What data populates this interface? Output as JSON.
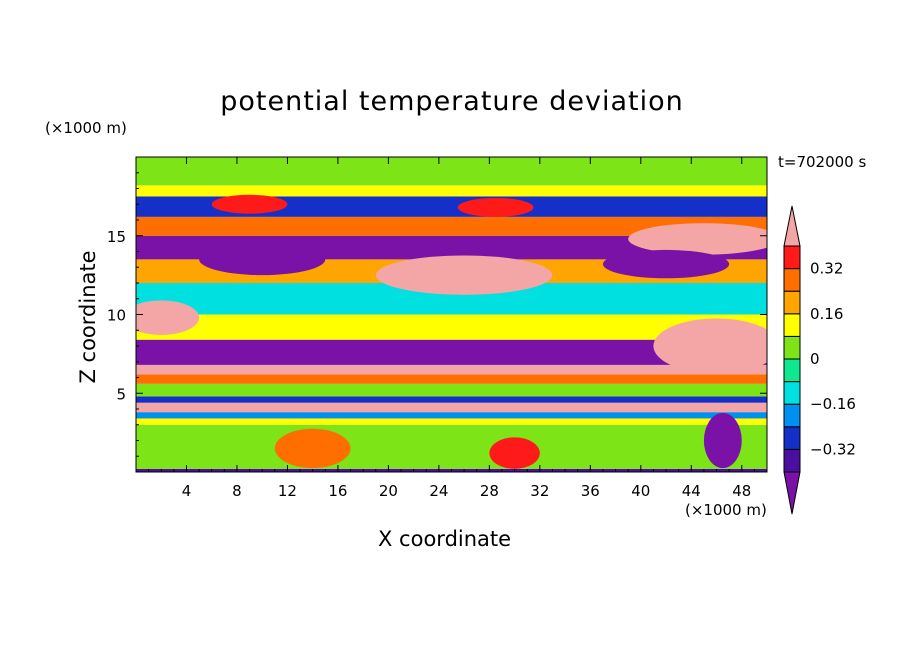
{
  "chart_data": {
    "type": "heatmap",
    "title": "potential temperature deviation",
    "xlabel": "X coordinate",
    "ylabel": "Z coordinate",
    "x_unit_label": "(×1000 m)",
    "y_unit_label": "(×1000 m)",
    "time_label": "t=702000 s",
    "xlim": [
      0,
      50
    ],
    "ylim": [
      0,
      20
    ],
    "x_ticks": [
      4,
      8,
      12,
      16,
      20,
      24,
      28,
      32,
      36,
      40,
      44,
      48
    ],
    "x_tick_labels": [
      "4",
      "8",
      "12",
      "16",
      "20",
      "24",
      "28",
      "32",
      "36",
      "40",
      "44",
      "48"
    ],
    "y_ticks": [
      5,
      10,
      15
    ],
    "y_tick_labels": [
      "5",
      "10",
      "15"
    ],
    "colorbar": {
      "levels": [
        -0.4,
        -0.32,
        -0.24,
        -0.16,
        -0.08,
        0,
        0.08,
        0.16,
        0.24,
        0.32,
        0.4
      ],
      "tick_values": [
        -0.32,
        -0.16,
        0,
        0.16,
        0.32
      ],
      "tick_labels": [
        "−0.32",
        "−0.16",
        "0",
        "0.16",
        "0.32"
      ],
      "colors": [
        "#7b12a8",
        "#4b0fa0",
        "#1530c8",
        "#0090f0",
        "#00e0e0",
        "#10e890",
        "#7de418",
        "#ffff00",
        "#ffa500",
        "#ff6e00",
        "#ff1a1a",
        "#f4a6a6"
      ],
      "extend": "both"
    },
    "bands": [
      {
        "z": [
          0,
          0.2
        ],
        "value": -0.36
      },
      {
        "z": [
          0.2,
          3.0
        ],
        "value": 0.0
      },
      {
        "z": [
          3.0,
          3.4
        ],
        "value": 0.08
      },
      {
        "z": [
          3.4,
          3.8
        ],
        "value": -0.2
      },
      {
        "z": [
          3.8,
          4.4
        ],
        "value": 0.45
      },
      {
        "z": [
          4.4,
          4.8
        ],
        "value": -0.3
      },
      {
        "z": [
          4.8,
          5.6
        ],
        "value": 0.04
      },
      {
        "z": [
          5.6,
          6.2
        ],
        "value": 0.3
      },
      {
        "z": [
          6.2,
          6.8
        ],
        "value": 0.45
      },
      {
        "z": [
          6.8,
          8.4
        ],
        "value": -0.45
      },
      {
        "z": [
          8.4,
          10.0
        ],
        "value": 0.12
      },
      {
        "z": [
          10.0,
          12.0
        ],
        "value": -0.1
      },
      {
        "z": [
          12.0,
          13.5
        ],
        "value": 0.2
      },
      {
        "z": [
          13.5,
          15.0
        ],
        "value": -0.42
      },
      {
        "z": [
          15.0,
          16.2
        ],
        "value": 0.3
      },
      {
        "z": [
          16.2,
          17.5
        ],
        "value": -0.3
      },
      {
        "z": [
          17.5,
          18.2
        ],
        "value": 0.08
      },
      {
        "z": [
          18.2,
          20.0
        ],
        "value": 0.05
      }
    ],
    "features": [
      {
        "x": 2.0,
        "z": 9.8,
        "w": 6.0,
        "h": 2.2,
        "value": 0.45
      },
      {
        "x": 26.0,
        "z": 12.5,
        "w": 14.0,
        "h": 2.5,
        "value": 0.45
      },
      {
        "x": 45.0,
        "z": 14.8,
        "w": 12.0,
        "h": 2.0,
        "value": 0.45
      },
      {
        "x": 46.0,
        "z": 8.0,
        "w": 10.0,
        "h": 3.5,
        "value": 0.45
      },
      {
        "x": 10.0,
        "z": 13.5,
        "w": 10.0,
        "h": 2.0,
        "value": -0.45
      },
      {
        "x": 42.0,
        "z": 13.2,
        "w": 10.0,
        "h": 1.8,
        "value": -0.45
      },
      {
        "x": 28.5,
        "z": 16.8,
        "w": 6.0,
        "h": 1.2,
        "value": 0.35
      },
      {
        "x": 9.0,
        "z": 17.0,
        "w": 6.0,
        "h": 1.2,
        "value": 0.35
      },
      {
        "x": 14.0,
        "z": 1.5,
        "w": 6.0,
        "h": 2.5,
        "value": 0.3
      },
      {
        "x": 30.0,
        "z": 1.2,
        "w": 4.0,
        "h": 2.0,
        "value": 0.32
      },
      {
        "x": 46.5,
        "z": 2.0,
        "w": 3.0,
        "h": 3.5,
        "value": -0.45
      }
    ]
  }
}
